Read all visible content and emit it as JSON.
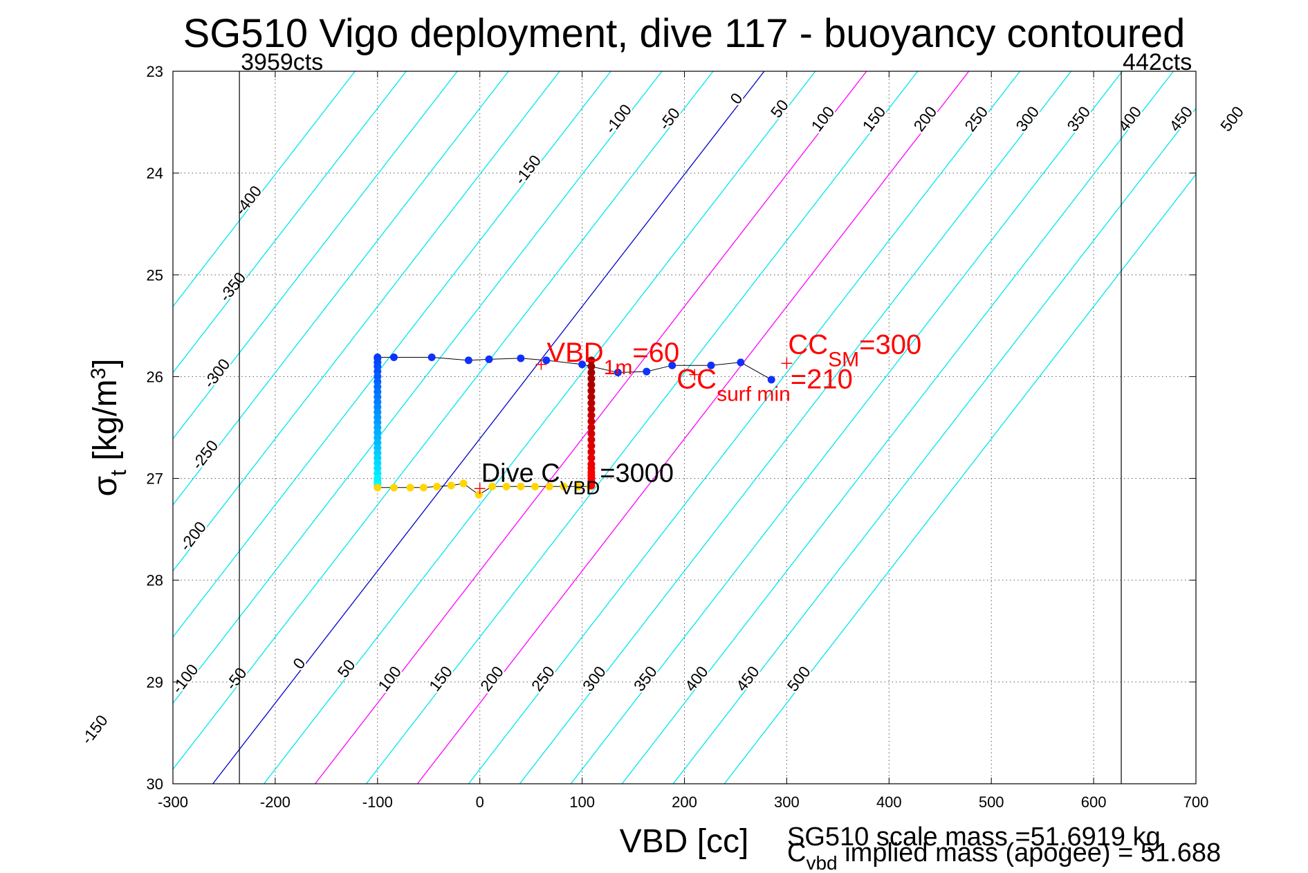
{
  "chart_data": {
    "type": "scatter",
    "title": "SG510 Vigo deployment, dive 117 - buoyancy contoured",
    "xlabel": "VBD [cc]",
    "ylabel_main": "σ",
    "ylabel_sub": "t",
    "ylabel_units": " [kg/m",
    "ylabel_sup": "3",
    "ylabel_close": "]",
    "xlim": [
      -300,
      700
    ],
    "ylim": [
      23,
      30
    ],
    "y_reversed": true,
    "grid": "dotted",
    "x_ticks": [
      -300,
      -200,
      -100,
      0,
      100,
      200,
      300,
      400,
      500,
      600,
      700
    ],
    "y_ticks": [
      23,
      24,
      25,
      26,
      27,
      28,
      29,
      30
    ],
    "x_tick_labels": [
      "-300",
      "-200",
      "-100",
      "0",
      "100",
      "200",
      "300",
      "400",
      "500",
      "600",
      "700"
    ],
    "y_tick_labels": [
      "23",
      "24",
      "25",
      "26",
      "27",
      "28",
      "29",
      "30"
    ],
    "count_limits": [
      {
        "label": "3959cts",
        "x": -235
      },
      {
        "label": "442cts",
        "x": 627
      }
    ],
    "buoyancy_contours": {
      "levels": [
        -400,
        -350,
        -300,
        -250,
        -200,
        -150,
        -100,
        -50,
        0,
        50,
        100,
        150,
        200,
        250,
        300,
        350,
        400,
        450,
        500
      ],
      "slope_cc_per_sigma": 77,
      "ref_sigma": 27,
      "ref_vbd_at_zero": -30,
      "highlight": {
        "0": "#0000cc",
        "100": "#ff00ff",
        "200": "#ff00ff"
      },
      "default_color": "#00e5ee",
      "top_labels": [
        {
          "level": -100,
          "sigma": 23.5
        },
        {
          "level": -50,
          "sigma": 23.5
        },
        {
          "level": 0,
          "sigma": 23.3
        },
        {
          "level": 50,
          "sigma": 23.4
        },
        {
          "level": 100,
          "sigma": 23.5
        },
        {
          "level": 150,
          "sigma": 23.5
        },
        {
          "level": 200,
          "sigma": 23.5
        },
        {
          "level": 250,
          "sigma": 23.5
        },
        {
          "level": 300,
          "sigma": 23.5
        },
        {
          "level": 350,
          "sigma": 23.5
        },
        {
          "level": 400,
          "sigma": 23.5
        },
        {
          "level": 450,
          "sigma": 23.5
        },
        {
          "level": 500,
          "sigma": 23.5
        },
        {
          "level": -150,
          "sigma": 24.0
        },
        {
          "level": -400,
          "sigma": 24.3
        },
        {
          "level": -350,
          "sigma": 25.15
        },
        {
          "level": -300,
          "sigma": 26.0
        },
        {
          "level": -250,
          "sigma": 26.8
        },
        {
          "level": -200,
          "sigma": 27.6
        }
      ],
      "bottom_labels": [
        {
          "level": -150,
          "sigma": 29.5
        },
        {
          "level": -100,
          "sigma": 29.0
        },
        {
          "level": -50,
          "sigma": 29.0
        },
        {
          "level": 0,
          "sigma": 28.85
        },
        {
          "level": 50,
          "sigma": 28.9
        },
        {
          "level": 100,
          "sigma": 29.0
        },
        {
          "level": 150,
          "sigma": 29.0
        },
        {
          "level": 200,
          "sigma": 29.0
        },
        {
          "level": 250,
          "sigma": 29.0
        },
        {
          "level": 300,
          "sigma": 29.0
        },
        {
          "level": 350,
          "sigma": 29.0
        },
        {
          "level": 400,
          "sigma": 29.0
        },
        {
          "level": 450,
          "sigma": 29.0
        },
        {
          "level": 500,
          "sigma": 29.0
        }
      ]
    },
    "series": [
      {
        "role": "surface_track",
        "color": "#1030ff",
        "x": [
          -100,
          -84,
          -47,
          -11,
          9,
          40,
          65,
          100,
          135,
          163,
          188,
          226,
          255,
          285
        ],
        "y": [
          25.81,
          25.81,
          25.81,
          25.84,
          25.83,
          25.82,
          25.84,
          25.88,
          25.96,
          25.95,
          25.89,
          25.89,
          25.86,
          26.03
        ]
      },
      {
        "role": "descent_vbd_min",
        "x": [
          -100,
          -100,
          -100,
          -100,
          -100,
          -100,
          -100,
          -100,
          -100,
          -100,
          -100,
          -100,
          -100,
          -100,
          -100,
          -100,
          -100,
          -100,
          -100,
          -100,
          -100,
          -100,
          -100,
          -100,
          -100,
          -100,
          -100,
          -100
        ],
        "y": [
          25.82,
          25.86,
          25.9,
          25.95,
          26.0,
          26.05,
          26.1,
          26.15,
          26.2,
          26.25,
          26.3,
          26.35,
          26.4,
          26.45,
          26.5,
          26.55,
          26.6,
          26.65,
          26.7,
          26.75,
          26.8,
          26.85,
          26.9,
          26.95,
          27.0,
          27.03,
          27.06,
          27.08
        ]
      },
      {
        "role": "apogee_track",
        "color": "#ffd700",
        "x": [
          -100,
          -84,
          -68,
          -55,
          -42,
          -28,
          -16,
          -1,
          12,
          26,
          40,
          54,
          68,
          82,
          96,
          108
        ],
        "y": [
          27.09,
          27.09,
          27.09,
          27.09,
          27.08,
          27.07,
          27.05,
          27.16,
          27.08,
          27.08,
          27.08,
          27.08,
          27.08,
          27.08,
          27.08,
          27.08
        ]
      },
      {
        "role": "ascent_vbd_max",
        "x": [
          109,
          109,
          109,
          109,
          109,
          109,
          109,
          109,
          109,
          109,
          109,
          109,
          109,
          109,
          109,
          109,
          109,
          109,
          109,
          109,
          109,
          109,
          109,
          109,
          109
        ],
        "y": [
          25.84,
          25.9,
          25.96,
          26.02,
          26.08,
          26.14,
          26.2,
          26.26,
          26.32,
          26.38,
          26.44,
          26.5,
          26.56,
          26.62,
          26.68,
          26.74,
          26.8,
          26.86,
          26.9,
          26.94,
          26.97,
          27.0,
          27.03,
          27.05,
          27.07
        ]
      }
    ],
    "markers": [
      {
        "x": 60,
        "y": 25.88,
        "text": "VBD",
        "sub": "1m",
        "after": "=60",
        "color": "#ff0000"
      },
      {
        "x": 210,
        "y": 25.98,
        "text": "CC",
        "sub": "surf min",
        "after": "=210",
        "color": "#ff0000"
      },
      {
        "x": 300,
        "y": 25.87,
        "text": "CC",
        "sub": "SM",
        "after": "=300",
        "color": "#ff0000"
      },
      {
        "x": 0,
        "y": 27.1,
        "text": "Dive C",
        "sub": "VBD",
        "after": "=3000",
        "color": "#000000"
      }
    ],
    "footer": {
      "line1": "SG510 scale mass =51.6919 kg",
      "line2_main": "C",
      "line2_sub": "vbd",
      "line2_rest": " implied mass (apogee) = 51.688"
    }
  }
}
